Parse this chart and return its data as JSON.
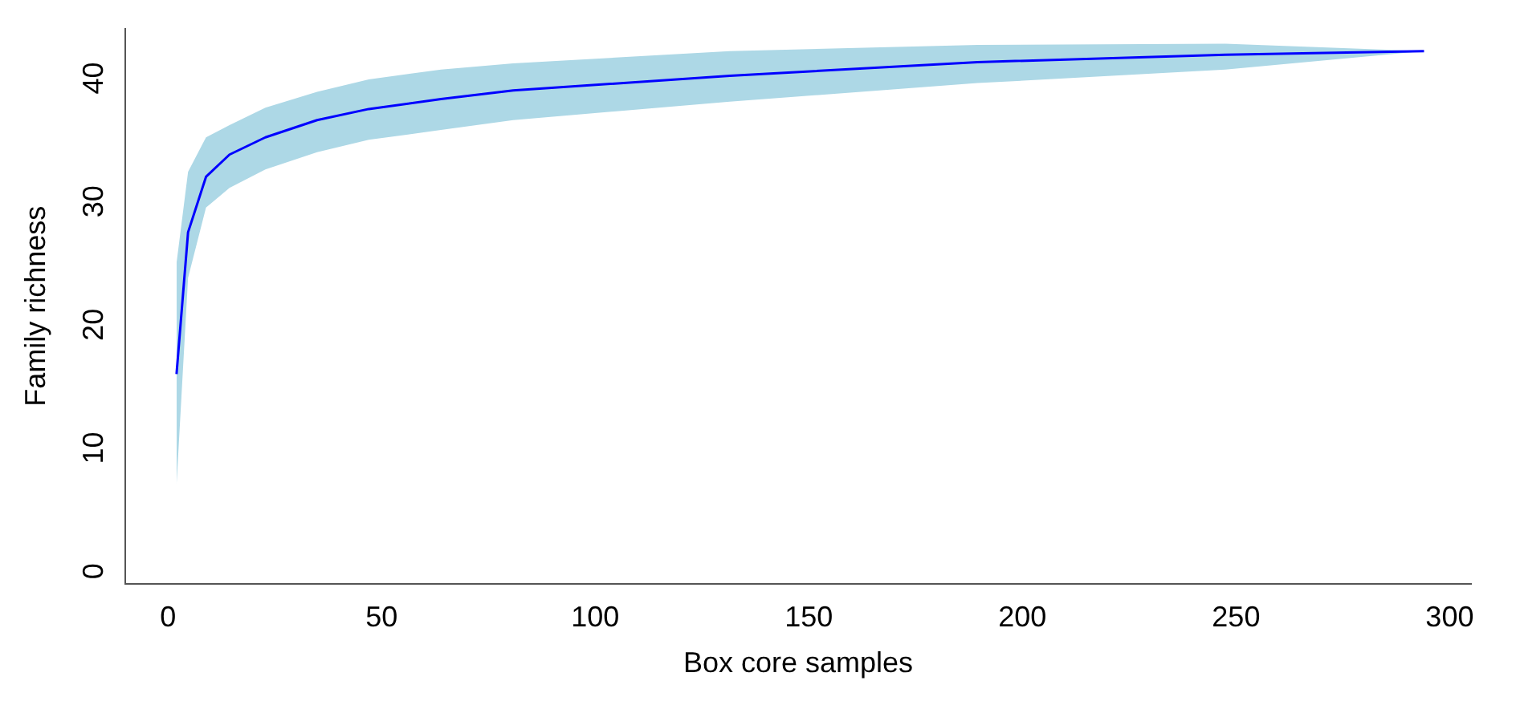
{
  "chart_data": {
    "type": "line",
    "xlabel": "Box core samples",
    "ylabel": "Family richness",
    "xlim": [
      -10,
      305
    ],
    "ylim": [
      -1,
      44
    ],
    "xticks": [
      0,
      50,
      100,
      150,
      200,
      250,
      300
    ],
    "yticks": [
      0,
      10,
      20,
      30,
      40
    ],
    "grid": false,
    "legend": false,
    "marker": "none",
    "line_style": "solid",
    "series": [
      {
        "color": "#0000ff",
        "x": [
          2,
          4.7,
          8.9,
          14.4,
          22.8,
          34.9,
          47,
          63.9,
          80.8,
          131.5,
          189.5,
          247.5,
          294
        ],
        "values": [
          16,
          27.5,
          32,
          33.8,
          35.2,
          36.6,
          37.5,
          38.3,
          39,
          40.2,
          41.3,
          41.9,
          42.2
        ],
        "lower": [
          7,
          23.8,
          29.5,
          31.1,
          32.6,
          34,
          35,
          35.8,
          36.6,
          38.1,
          39.6,
          40.7,
          42.2
        ],
        "upper": [
          25,
          32.4,
          35.2,
          36.2,
          37.6,
          38.9,
          39.9,
          40.7,
          41.2,
          42.2,
          42.7,
          42.8,
          42.2
        ]
      }
    ]
  }
}
